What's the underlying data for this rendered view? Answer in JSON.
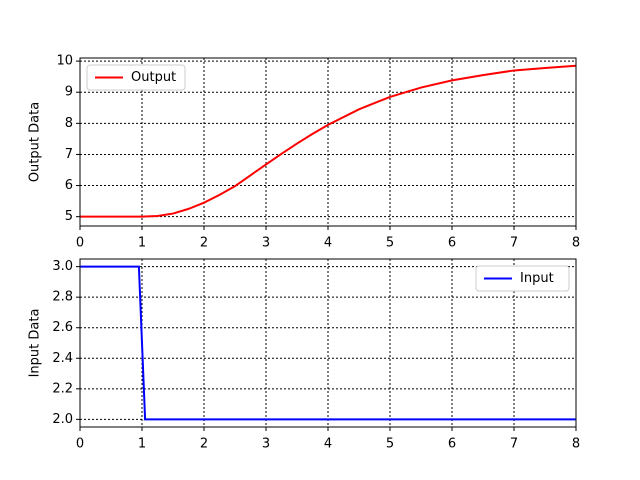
{
  "chart_data": [
    {
      "type": "line",
      "ylabel": "Output Data",
      "x": [
        0,
        0.5,
        1,
        1.25,
        1.5,
        1.75,
        2,
        2.25,
        2.5,
        2.75,
        3,
        3.25,
        3.5,
        3.75,
        4,
        4.5,
        5,
        5.5,
        6,
        6.5,
        7,
        7.5,
        8
      ],
      "series": [
        {
          "name": "Output",
          "color": "#ff0000",
          "values": [
            5,
            5,
            5,
            5.02,
            5.1,
            5.25,
            5.45,
            5.7,
            5.98,
            6.33,
            6.68,
            7.02,
            7.35,
            7.66,
            7.95,
            8.45,
            8.85,
            9.15,
            9.38,
            9.55,
            9.7,
            9.78,
            9.85
          ]
        }
      ],
      "xlim": [
        0,
        8
      ],
      "xticks": [
        0,
        1,
        2,
        3,
        4,
        5,
        6,
        7,
        8
      ],
      "ylim": [
        4.7,
        10.1
      ],
      "yticks": [
        5,
        6,
        7,
        8,
        9,
        10
      ],
      "grid": true,
      "legend": "upper left"
    },
    {
      "type": "line",
      "ylabel": "Input Data",
      "x": [
        0,
        0.95,
        1.05,
        8
      ],
      "series": [
        {
          "name": "Input",
          "color": "#0000ff",
          "values": [
            3,
            3,
            2,
            2
          ]
        }
      ],
      "xlim": [
        0,
        8
      ],
      "xticks": [
        0,
        1,
        2,
        3,
        4,
        5,
        6,
        7,
        8
      ],
      "ylim": [
        1.95,
        3.05
      ],
      "yticks": [
        {
          "value": 2,
          "label": "2.0"
        },
        2.2,
        2.4,
        2.6,
        2.8,
        {
          "value": 3,
          "label": "3.0"
        }
      ],
      "grid": true,
      "legend": "upper right"
    }
  ]
}
